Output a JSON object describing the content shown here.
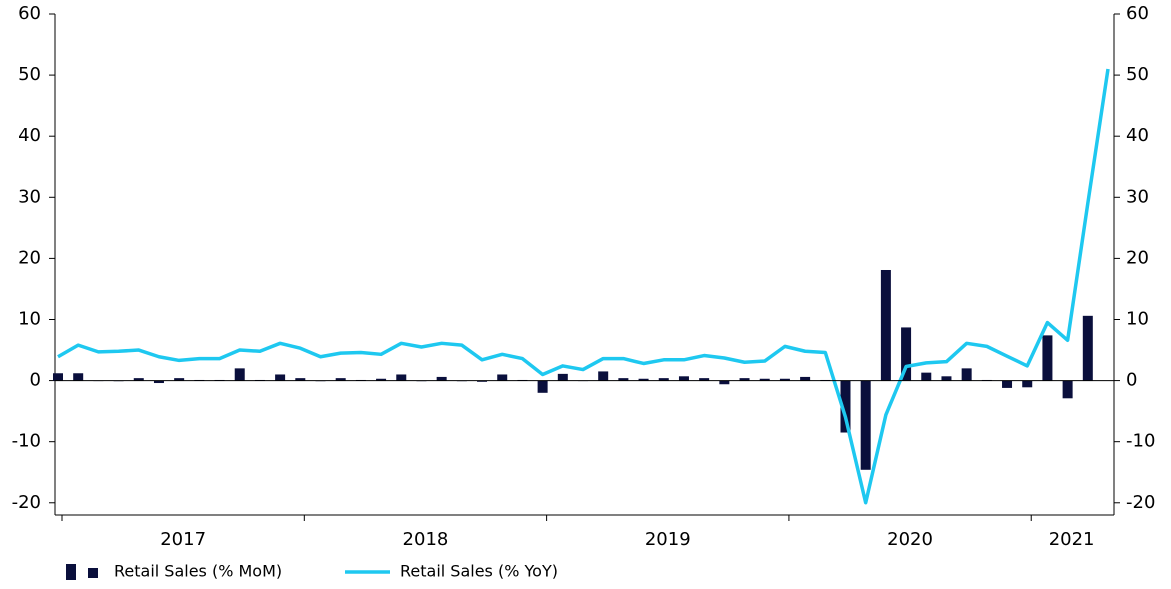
{
  "chart_data": {
    "type": "bar_line",
    "categories": [
      null,
      null,
      null,
      null,
      null,
      null,
      "2017",
      null,
      null,
      null,
      null,
      null,
      null,
      null,
      null,
      null,
      null,
      null,
      "2018",
      null,
      null,
      null,
      null,
      null,
      null,
      null,
      null,
      null,
      null,
      null,
      "2019",
      null,
      null,
      null,
      null,
      null,
      null,
      null,
      null,
      null,
      null,
      null,
      "2020",
      null,
      null,
      null,
      null,
      null,
      null,
      null,
      "2021",
      null,
      null
    ],
    "series": [
      {
        "name": "Retail Sales (% MoM)",
        "type": "bar",
        "color": "#0a0f3c",
        "values": [
          1.2,
          1.2,
          0,
          -0.1,
          0.4,
          -0.4,
          0.4,
          0.1,
          0.1,
          2.0,
          0.1,
          1.0,
          0.4,
          -0.1,
          0.4,
          0.1,
          0.3,
          1.0,
          -0.1,
          0.6,
          -0.1,
          -0.2,
          1.0,
          0.1,
          -2.0,
          1.1,
          0,
          1.5,
          0.4,
          0.3,
          0.4,
          0.7,
          0.4,
          -0.6,
          0.4,
          0.3,
          0.3,
          0.6,
          0.1,
          -8.5,
          -14.6,
          18.1,
          8.7,
          1.3,
          0.7,
          2.0,
          0.1,
          -1.2,
          -1.1,
          7.4,
          -2.9,
          10.6,
          null
        ]
      },
      {
        "name": "Retail Sales (% YoY)",
        "type": "line",
        "axis": "y2",
        "color": "#1ec8f0",
        "values": [
          3.9,
          5.8,
          4.7,
          4.8,
          5.0,
          3.9,
          3.3,
          3.6,
          3.6,
          5.0,
          4.8,
          6.1,
          5.3,
          3.9,
          4.5,
          4.6,
          4.3,
          6.1,
          5.5,
          6.1,
          5.8,
          3.4,
          4.3,
          3.6,
          1.0,
          2.4,
          1.8,
          3.6,
          3.6,
          2.8,
          3.4,
          3.4,
          4.1,
          3.7,
          3.0,
          3.2,
          5.6,
          4.8,
          4.6,
          -6.0,
          -20.0,
          -5.6,
          2.3,
          2.9,
          3.1,
          6.1,
          5.6,
          4.0,
          2.4,
          9.5,
          6.6,
          29.0,
          51.0
        ]
      }
    ],
    "ylim": [
      -22,
      60
    ],
    "yticks": [
      -20,
      -10,
      0,
      10,
      20,
      30,
      40,
      50,
      60
    ],
    "y2lim": [
      -22,
      60
    ],
    "y2ticks": [
      -20,
      -10,
      0,
      10,
      20,
      30,
      40,
      50,
      60
    ]
  }
}
